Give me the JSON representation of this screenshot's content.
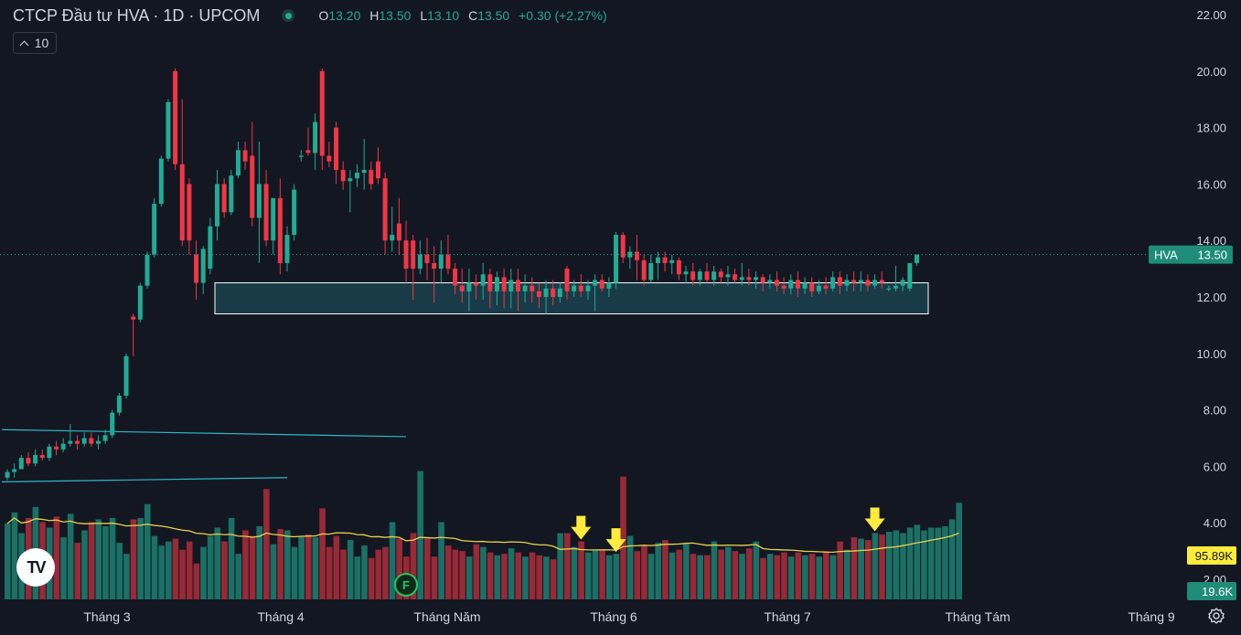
{
  "header": {
    "symbol": "CTCP Đầu tư HVA · 1D · UPCOM",
    "o_label": "O",
    "o_value": "13.20",
    "h_label": "H",
    "h_value": "13.50",
    "l_label": "L",
    "l_value": "13.10",
    "c_label": "C",
    "c_value": "13.50",
    "change": "+0.30 (+2.27%)"
  },
  "volume_toggle": {
    "value": "10"
  },
  "colors": {
    "up": "#22ab94",
    "down": "#f23645",
    "background": "#131722",
    "volume_ma": "#e8d14a",
    "arrow": "#ffeb3b",
    "box": "#1e5a66"
  },
  "chart_data": {
    "type": "candlestick",
    "series_name": "HVA",
    "price_axis": {
      "ticks": [
        "22.00",
        "20.00",
        "18.00",
        "16.00",
        "14.00",
        "12.00",
        "10.00",
        "8.00",
        "6.00",
        "4.00",
        "2.00"
      ],
      "range": [
        1.9,
        22.0
      ]
    },
    "time_axis": {
      "labels": [
        "Tháng 3",
        "Tháng 4",
        "Tháng Năm",
        "Tháng 6",
        "Tháng 7",
        "Tháng Tám",
        "Tháng 9"
      ]
    },
    "last_price": {
      "label": "HVA",
      "value": "13.50"
    },
    "volume_ma_label": "95.89K",
    "volume_label": "19.6K",
    "event_marker": "F",
    "highlighted_zone": {
      "price_from": 11.4,
      "price_to": 12.5,
      "from_date": "Tháng 3 (late)",
      "to_date": "Tháng 7 (end)"
    },
    "candles": [
      [
        5.6,
        5.9,
        5.5,
        5.8
      ],
      [
        5.8,
        6.1,
        5.6,
        5.9
      ],
      [
        5.9,
        6.4,
        5.9,
        6.3
      ],
      [
        6.3,
        6.5,
        6.0,
        6.1
      ],
      [
        6.1,
        6.6,
        6.0,
        6.4
      ],
      [
        6.4,
        6.6,
        6.2,
        6.3
      ],
      [
        6.3,
        6.8,
        6.2,
        6.7
      ],
      [
        6.7,
        6.9,
        6.4,
        6.6
      ],
      [
        6.6,
        7.0,
        6.5,
        6.8
      ],
      [
        6.8,
        7.5,
        6.7,
        6.9
      ],
      [
        6.9,
        7.1,
        6.6,
        6.8
      ],
      [
        6.8,
        7.2,
        6.7,
        7.0
      ],
      [
        7.0,
        7.2,
        6.7,
        6.8
      ],
      [
        6.8,
        7.1,
        6.6,
        6.9
      ],
      [
        6.9,
        7.3,
        6.8,
        7.1
      ],
      [
        7.1,
        8.0,
        7.0,
        7.9
      ],
      [
        7.9,
        8.6,
        7.8,
        8.5
      ],
      [
        8.5,
        10.0,
        8.4,
        9.9
      ],
      [
        11.3,
        11.4,
        9.9,
        11.2
      ],
      [
        11.2,
        12.5,
        11.1,
        12.4
      ],
      [
        12.4,
        13.6,
        12.3,
        13.5
      ],
      [
        13.5,
        15.5,
        13.4,
        15.3
      ],
      [
        15.3,
        17.0,
        15.2,
        16.9
      ],
      [
        16.9,
        19.0,
        16.8,
        18.9
      ],
      [
        20.0,
        20.1,
        16.5,
        16.7
      ],
      [
        16.7,
        19.0,
        13.8,
        14.0
      ],
      [
        16.0,
        16.2,
        13.5,
        14.0
      ],
      [
        13.5,
        14.0,
        11.9,
        12.5
      ],
      [
        12.5,
        13.8,
        12.1,
        13.7
      ],
      [
        13.0,
        14.8,
        12.8,
        14.5
      ],
      [
        14.5,
        16.5,
        14.0,
        16.0
      ],
      [
        16.0,
        16.2,
        14.8,
        15.0
      ],
      [
        15.0,
        16.5,
        14.9,
        16.3
      ],
      [
        16.3,
        17.5,
        16.2,
        17.2
      ],
      [
        17.2,
        17.5,
        16.5,
        16.8
      ],
      [
        17.0,
        18.2,
        14.5,
        14.8
      ],
      [
        14.8,
        17.5,
        13.2,
        16.0
      ],
      [
        16.0,
        16.5,
        13.8,
        14.0
      ],
      [
        14.0,
        15.5,
        13.5,
        15.5
      ],
      [
        15.5,
        16.2,
        12.8,
        13.2
      ],
      [
        13.2,
        14.5,
        12.9,
        14.2
      ],
      [
        14.2,
        16.0,
        14.0,
        15.8
      ],
      [
        17.0,
        17.2,
        16.8,
        17.0
      ],
      [
        17.2,
        18.0,
        17.0,
        17.1
      ],
      [
        17.1,
        18.5,
        16.5,
        18.2
      ],
      [
        20.0,
        20.1,
        16.5,
        17.0
      ],
      [
        17.0,
        17.5,
        16.6,
        16.8
      ],
      [
        18.0,
        18.2,
        16.0,
        16.5
      ],
      [
        16.5,
        16.8,
        15.8,
        16.1
      ],
      [
        16.1,
        16.5,
        15.0,
        16.2
      ],
      [
        16.2,
        16.7,
        15.9,
        16.4
      ],
      [
        16.4,
        17.6,
        15.8,
        16.5
      ],
      [
        16.5,
        16.8,
        15.8,
        16.0
      ],
      [
        16.8,
        17.3,
        16.0,
        16.2
      ],
      [
        16.2,
        16.4,
        13.5,
        14.0
      ],
      [
        14.0,
        15.2,
        13.6,
        14.2
      ],
      [
        14.6,
        15.5,
        13.5,
        14.0
      ],
      [
        14.0,
        14.7,
        12.5,
        13.0
      ],
      [
        14.0,
        14.2,
        11.9,
        13.0
      ],
      [
        13.0,
        14.0,
        12.8,
        13.5
      ],
      [
        13.5,
        14.1,
        12.6,
        13.2
      ],
      [
        13.2,
        13.8,
        11.8,
        13.0
      ],
      [
        13.0,
        14.0,
        12.5,
        13.5
      ],
      [
        13.5,
        14.2,
        12.8,
        13.0
      ],
      [
        13.0,
        13.2,
        12.1,
        12.4
      ],
      [
        12.4,
        13.0,
        11.8,
        12.2
      ],
      [
        12.2,
        13.0,
        11.5,
        12.5
      ],
      [
        12.5,
        12.8,
        11.9,
        12.4
      ],
      [
        12.4,
        13.2,
        11.9,
        12.8
      ],
      [
        12.8,
        13.0,
        11.6,
        12.2
      ],
      [
        12.2,
        12.9,
        11.7,
        12.7
      ],
      [
        12.7,
        13.0,
        11.6,
        12.2
      ],
      [
        12.2,
        13.0,
        11.6,
        12.6
      ],
      [
        12.6,
        13.0,
        11.5,
        12.2
      ],
      [
        12.2,
        12.8,
        11.8,
        12.4
      ],
      [
        12.4,
        12.7,
        11.8,
        12.2
      ],
      [
        12.2,
        12.5,
        11.6,
        12.0
      ],
      [
        12.0,
        12.6,
        11.4,
        12.3
      ],
      [
        12.3,
        12.6,
        11.7,
        12.0
      ],
      [
        12.0,
        12.5,
        11.8,
        12.3
      ],
      [
        13.0,
        13.1,
        11.9,
        12.2
      ],
      [
        12.2,
        12.6,
        12.0,
        12.4
      ],
      [
        12.4,
        12.8,
        12.0,
        12.2
      ],
      [
        12.2,
        12.6,
        11.9,
        12.4
      ],
      [
        12.4,
        12.8,
        11.5,
        12.6
      ],
      [
        12.6,
        12.8,
        12.2,
        12.3
      ],
      [
        12.3,
        12.7,
        12.0,
        12.5
      ],
      [
        12.5,
        14.3,
        12.3,
        14.2
      ],
      [
        14.2,
        14.3,
        13.2,
        13.4
      ],
      [
        13.4,
        13.8,
        13.0,
        13.6
      ],
      [
        13.6,
        14.2,
        12.6,
        13.3
      ],
      [
        13.3,
        13.5,
        12.4,
        12.6
      ],
      [
        12.6,
        13.5,
        12.5,
        13.2
      ],
      [
        13.2,
        13.6,
        12.6,
        13.4
      ],
      [
        13.4,
        13.6,
        12.9,
        13.2
      ],
      [
        13.2,
        13.5,
        12.8,
        13.3
      ],
      [
        13.3,
        13.4,
        12.6,
        12.8
      ],
      [
        12.8,
        13.1,
        12.5,
        12.9
      ],
      [
        12.9,
        13.2,
        12.4,
        12.6
      ],
      [
        12.6,
        13.0,
        12.4,
        12.9
      ],
      [
        12.9,
        13.2,
        12.5,
        12.6
      ],
      [
        12.6,
        13.1,
        12.4,
        12.9
      ],
      [
        12.9,
        13.0,
        12.5,
        12.7
      ],
      [
        12.7,
        13.1,
        12.4,
        12.8
      ],
      [
        12.8,
        13.0,
        12.5,
        12.6
      ],
      [
        12.6,
        13.2,
        12.4,
        12.7
      ],
      [
        12.7,
        13.0,
        12.4,
        12.6
      ],
      [
        12.6,
        12.9,
        12.3,
        12.7
      ],
      [
        12.7,
        12.8,
        12.2,
        12.5
      ],
      [
        12.5,
        12.8,
        12.3,
        12.6
      ],
      [
        12.6,
        12.9,
        12.2,
        12.4
      ],
      [
        12.4,
        12.7,
        12.1,
        12.3
      ],
      [
        12.3,
        12.8,
        12.1,
        12.6
      ],
      [
        12.6,
        12.9,
        12.0,
        12.3
      ],
      [
        12.3,
        12.7,
        12.1,
        12.5
      ],
      [
        12.5,
        12.7,
        12.0,
        12.2
      ],
      [
        12.2,
        12.6,
        12.1,
        12.4
      ],
      [
        12.4,
        12.7,
        12.1,
        12.3
      ],
      [
        12.3,
        12.9,
        12.2,
        12.7
      ],
      [
        12.7,
        12.9,
        12.1,
        12.4
      ],
      [
        12.4,
        12.8,
        12.2,
        12.6
      ],
      [
        12.6,
        12.9,
        12.2,
        12.5
      ],
      [
        12.5,
        12.9,
        12.2,
        12.6
      ],
      [
        12.6,
        12.8,
        12.2,
        12.4
      ],
      [
        12.4,
        12.8,
        12.3,
        12.6
      ],
      [
        12.6,
        12.9,
        12.3,
        12.5
      ],
      [
        12.3,
        12.4,
        12.2,
        12.3
      ],
      [
        12.3,
        13.1,
        12.2,
        12.4
      ],
      [
        12.4,
        12.7,
        12.2,
        12.6
      ],
      [
        12.3,
        13.2,
        12.2,
        13.2
      ],
      [
        13.2,
        13.5,
        13.1,
        13.5
      ]
    ],
    "volume": [
      0.55,
      0.63,
      0.48,
      0.59,
      0.67,
      0.56,
      0.52,
      0.6,
      0.45,
      0.62,
      0.41,
      0.5,
      0.56,
      0.58,
      0.53,
      0.59,
      0.41,
      0.33,
      0.58,
      0.59,
      0.69,
      0.46,
      0.39,
      0.42,
      0.44,
      0.36,
      0.42,
      0.26,
      0.38,
      0.46,
      0.52,
      0.42,
      0.59,
      0.33,
      0.5,
      0.46,
      0.53,
      0.8,
      0.4,
      0.51,
      0.5,
      0.38,
      0.45,
      0.47,
      0.45,
      0.66,
      0.38,
      0.46,
      0.36,
      0.43,
      0.31,
      0.39,
      0.3,
      0.36,
      0.38,
      0.56,
      0.44,
      0.31,
      0.48,
      0.93,
      0.45,
      0.31,
      0.56,
      0.39,
      0.36,
      0.35,
      0.31,
      0.4,
      0.38,
      0.34,
      0.32,
      0.33,
      0.37,
      0.34,
      0.31,
      0.34,
      0.32,
      0.31,
      0.29,
      0.48,
      0.48,
      0.38,
      0.42,
      0.34,
      0.36,
      0.36,
      0.32,
      0.33,
      0.89,
      0.46,
      0.35,
      0.39,
      0.33,
      0.41,
      0.43,
      0.34,
      0.36,
      0.4,
      0.33,
      0.32,
      0.32,
      0.42,
      0.36,
      0.38,
      0.35,
      0.33,
      0.37,
      0.42,
      0.3,
      0.33,
      0.32,
      0.34,
      0.31,
      0.34,
      0.32,
      0.33,
      0.31,
      0.35,
      0.32,
      0.42,
      0.36,
      0.45,
      0.44,
      0.43,
      0.48,
      0.47,
      0.49,
      0.5,
      0.48,
      0.52,
      0.54,
      0.5,
      0.52,
      0.52,
      0.53,
      0.58,
      0.7
    ],
    "volume_ma": [
      1.0
    ],
    "arrows_at": [
      82,
      87,
      124
    ],
    "trend_lines": [
      {
        "from": [
          0,
          7.3
        ],
        "to": [
          57,
          7.05
        ]
      },
      {
        "from": [
          0,
          5.45
        ],
        "to": [
          40,
          5.6
        ]
      }
    ]
  }
}
